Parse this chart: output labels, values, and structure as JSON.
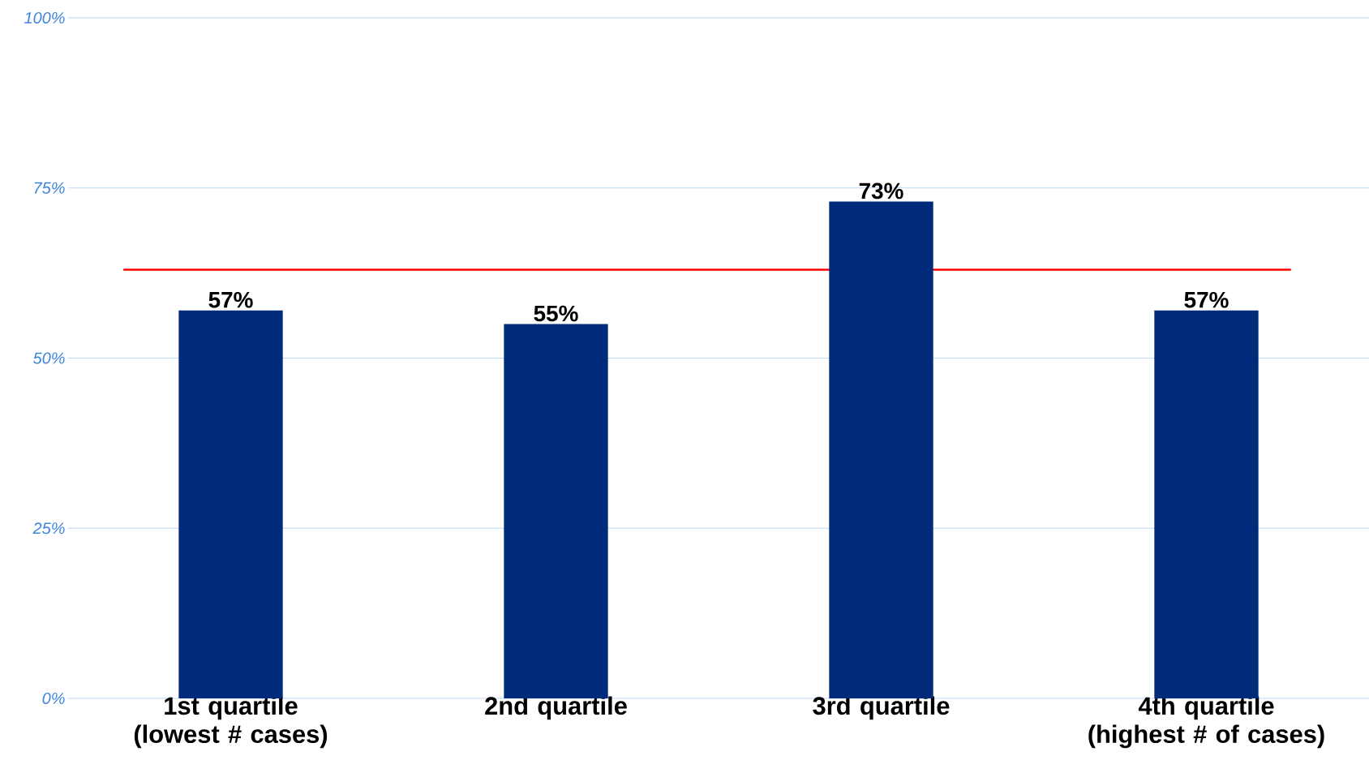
{
  "chart_data": {
    "type": "bar",
    "categories": [
      "1st quartile (lowest # cases)",
      "2nd quartile",
      "3rd quartile",
      "4th quartile (highest # of cases)"
    ],
    "values": [
      57,
      55,
      73,
      57
    ],
    "value_labels": [
      "57%",
      "55%",
      "73%",
      "57%"
    ],
    "color": "#002a7a",
    "ylim": [
      0,
      100
    ],
    "yticks": [
      {
        "value": 0,
        "label": "0%"
      },
      {
        "value": 25,
        "label": "25%"
      },
      {
        "value": 50,
        "label": "50%"
      },
      {
        "value": 75,
        "label": "75%"
      },
      {
        "value": 100,
        "label": "100%"
      }
    ],
    "grid": "y",
    "ref_lines": [
      {
        "axis": "y",
        "value": 63,
        "color": "#ff0000"
      }
    ]
  }
}
